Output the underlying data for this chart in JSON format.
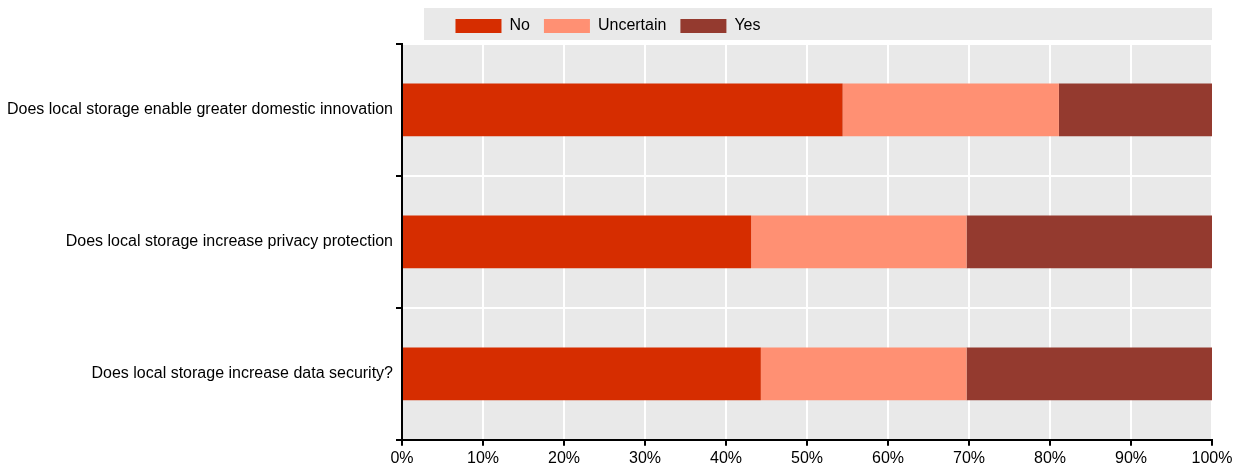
{
  "chart_data": {
    "type": "bar",
    "orientation": "horizontal",
    "stacked": true,
    "categories": [
      "Does local storage enable greater domestic innovation",
      "Does local storage increase privacy protection",
      "Does local storage increase data security?"
    ],
    "series": [
      {
        "name": "No",
        "color": "#d62d00",
        "values": [
          54.4,
          43.1,
          44.3
        ]
      },
      {
        "name": "Uncertain",
        "color": "#ff9073",
        "values": [
          26.7,
          26.6,
          25.4
        ]
      },
      {
        "name": "Yes",
        "color": "#943a2f",
        "values": [
          18.9,
          30.3,
          30.3
        ]
      }
    ],
    "xlim": [
      0,
      100
    ],
    "xticks": [
      {
        "value": 0,
        "label": "0%"
      },
      {
        "value": 10,
        "label": "10%"
      },
      {
        "value": 20,
        "label": "20%"
      },
      {
        "value": 30,
        "label": "30%"
      },
      {
        "value": 40,
        "label": "40%"
      },
      {
        "value": 50,
        "label": "50%"
      },
      {
        "value": 60,
        "label": "60%"
      },
      {
        "value": 70,
        "label": "70%"
      },
      {
        "value": 80,
        "label": "80%"
      },
      {
        "value": 90,
        "label": "90%"
      },
      {
        "value": 100,
        "label": "100%"
      }
    ],
    "grid": true,
    "legend": "top"
  }
}
